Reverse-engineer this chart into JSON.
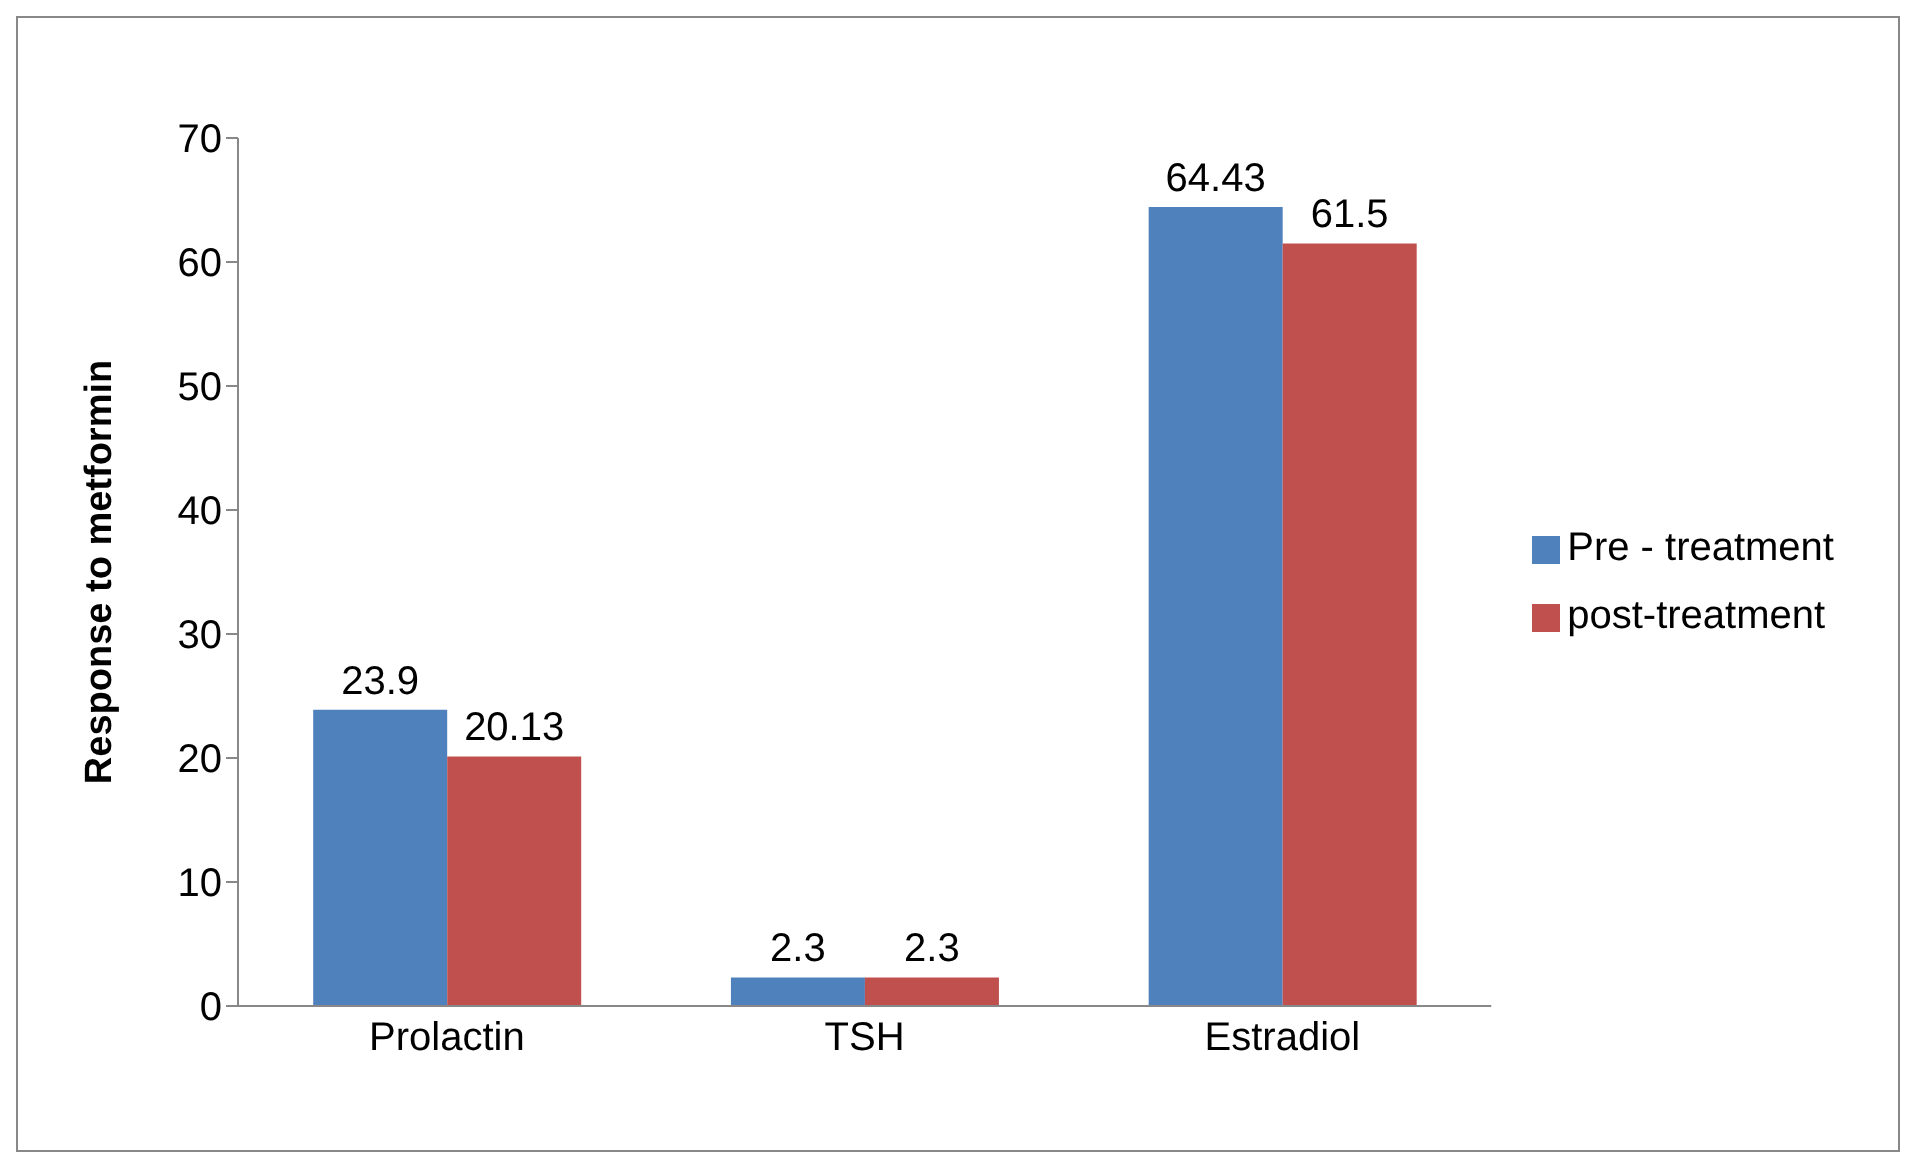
{
  "chart_data": {
    "type": "bar",
    "ylabel": "Response to metformin",
    "categories": [
      "Prolactin",
      "TSH",
      "Estradiol"
    ],
    "series": [
      {
        "name": "Pre - treatment",
        "color": "#4f81bd",
        "values": [
          23.9,
          2.3,
          64.43
        ]
      },
      {
        "name": "post-treatment",
        "color": "#c0504d",
        "values": [
          20.13,
          2.3,
          61.5
        ]
      }
    ],
    "ylim": [
      0,
      70
    ],
    "yticks": [
      0,
      10,
      20,
      30,
      40,
      50,
      60,
      70
    ],
    "grid": false,
    "legend": "right",
    "data_labels": true
  }
}
